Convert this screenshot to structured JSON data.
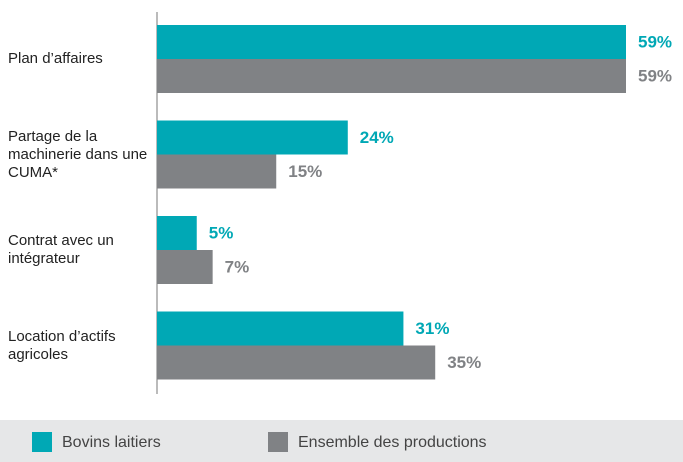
{
  "chart_data": {
    "type": "bar",
    "orientation": "horizontal",
    "categories": [
      "Plan d’affaires",
      "Partage de la machinerie dans une CUMA*",
      "Contrat avec un intégrateur",
      "Location d’actifs agricoles"
    ],
    "series": [
      {
        "name": "Bovins laitiers",
        "color": "#00a8b5",
        "values": [
          59,
          24,
          5,
          31
        ],
        "value_labels": [
          "59%",
          "24%",
          "5%",
          "31%"
        ]
      },
      {
        "name": "Ensemble des productions",
        "color": "#808285",
        "values": [
          59,
          15,
          7,
          35
        ],
        "value_labels": [
          "59%",
          "15%",
          "7%",
          "35%"
        ]
      }
    ],
    "legend": "bottom"
  }
}
